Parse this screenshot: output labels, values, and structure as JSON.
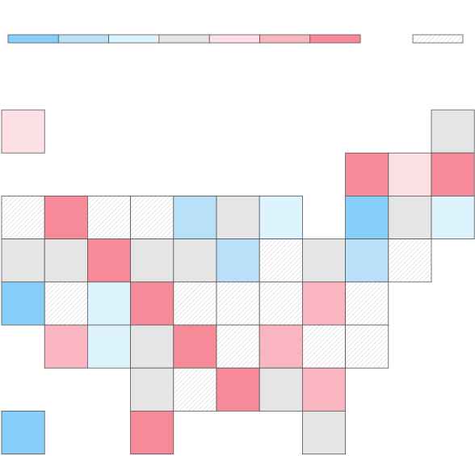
{
  "legend": {
    "colors": [
      "#87cefa",
      "#b8e0f8",
      "#ddf3fd",
      "#e5e5e5",
      "#fde0e5",
      "#f9b5c0",
      "#f78a98",
      "hatch"
    ]
  },
  "grid": [
    [
      4,
      null,
      null,
      null,
      null,
      null,
      null,
      null,
      null,
      null,
      3
    ],
    [
      null,
      null,
      null,
      null,
      null,
      null,
      null,
      null,
      6,
      4,
      6
    ],
    [
      7,
      6,
      7,
      7,
      1,
      3,
      2,
      null,
      0,
      3,
      2
    ],
    [
      3,
      3,
      6,
      3,
      3,
      1,
      7,
      3,
      1,
      7,
      null
    ],
    [
      0,
      7,
      2,
      6,
      7,
      7,
      7,
      5,
      7,
      null,
      null
    ],
    [
      null,
      5,
      2,
      3,
      6,
      7,
      5,
      7,
      7,
      null,
      null
    ],
    [
      null,
      null,
      null,
      3,
      7,
      6,
      3,
      5,
      null,
      null,
      null
    ],
    [
      0,
      null,
      null,
      6,
      null,
      null,
      null,
      3,
      null,
      null,
      null
    ]
  ]
}
